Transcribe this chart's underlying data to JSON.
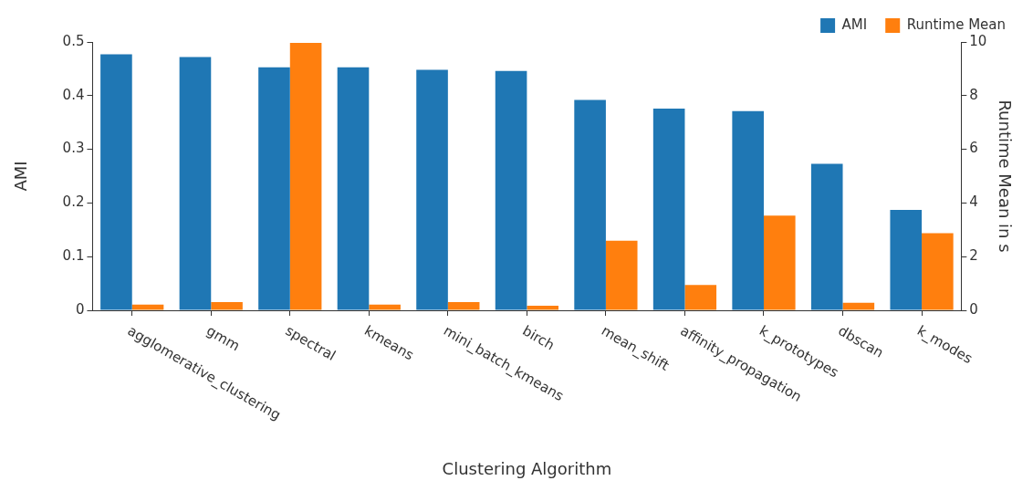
{
  "chart_data": {
    "type": "bar",
    "xlabel": "Clustering Algorithm",
    "ylabel": "AMI",
    "y2label": "Runtime Mean in s",
    "categories": [
      "agglomerative_clustering",
      "gmm",
      "spectral",
      "kmeans",
      "mini_batch_kmeans",
      "birch",
      "mean_shift",
      "affinity_propagation",
      "k_prototypes",
      "dbscan",
      "k_modes"
    ],
    "series": [
      {
        "name": "AMI",
        "color": "#1f77b4",
        "values": [
          0.477,
          0.472,
          0.453,
          0.453,
          0.448,
          0.446,
          0.392,
          0.376,
          0.371,
          0.273,
          0.187
        ]
      },
      {
        "name": "Runtime Mean",
        "color": "#ff7f0e",
        "axis": "y2",
        "values": [
          0.21,
          0.31,
          9.97,
          0.21,
          0.31,
          0.17,
          2.59,
          0.94,
          3.53,
          0.28,
          2.87
        ]
      }
    ],
    "ylim": [
      0,
      0.5
    ],
    "yticks": [
      0,
      0.1,
      0.2,
      0.3,
      0.4,
      0.5
    ],
    "y2lim": [
      0,
      10
    ],
    "y2ticks": [
      0,
      2,
      4,
      6,
      8,
      10
    ],
    "grid": false,
    "legend": "top right"
  }
}
